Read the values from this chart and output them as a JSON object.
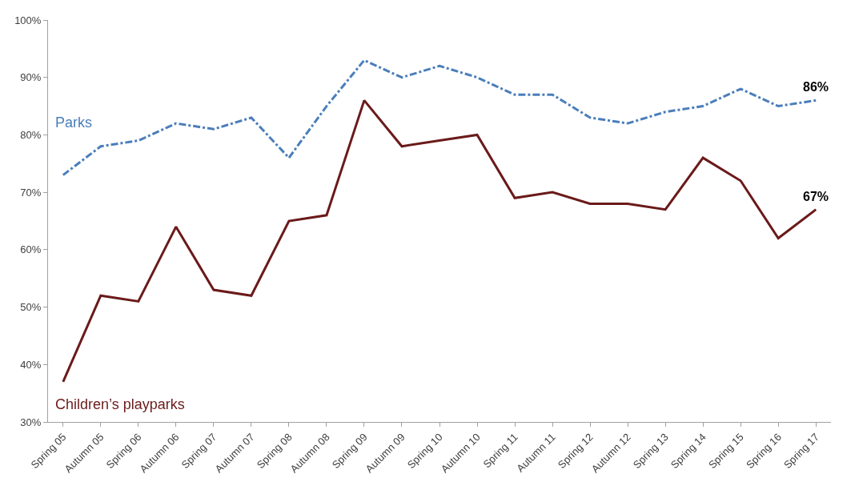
{
  "chart_data": {
    "type": "line",
    "categories": [
      "Spring 05",
      "Autumn 05",
      "Spring 06",
      "Autumn 06",
      "Spring 07",
      "Autumn 07",
      "Spring 08",
      "Autumn 08",
      "Spring 09",
      "Autumn 09",
      "Spring 10",
      "Autumn 10",
      "Spring 11",
      "Autumn 11",
      "Spring 12",
      "Autumn 12",
      "Spring 13",
      "Spring 14",
      "Spring 15",
      "Spring 16",
      "Spring 17"
    ],
    "series": [
      {
        "name": "Parks",
        "color": "#4a7ebb",
        "line_style": "dashed",
        "values": [
          73,
          78,
          79,
          82,
          81,
          83,
          76,
          85,
          93,
          90,
          92,
          90,
          87,
          87,
          83,
          82,
          84,
          85,
          88,
          85,
          86
        ],
        "value_labels": [
          null,
          null,
          null,
          null,
          null,
          null,
          null,
          null,
          null,
          null,
          null,
          null,
          null,
          null,
          null,
          null,
          null,
          null,
          null,
          null,
          "86%"
        ]
      },
      {
        "name": "Children’s playparks",
        "color": "#6b1a1a",
        "line_style": "solid",
        "values": [
          37,
          52,
          51,
          64,
          53,
          52,
          65,
          66,
          86,
          78,
          79,
          80,
          69,
          70,
          68,
          68,
          67,
          76,
          72,
          62,
          67
        ],
        "value_labels": [
          null,
          null,
          null,
          null,
          null,
          null,
          null,
          null,
          null,
          null,
          null,
          null,
          null,
          null,
          null,
          null,
          null,
          null,
          null,
          null,
          "67%"
        ]
      }
    ],
    "ylim": [
      30,
      100
    ],
    "yticks": [
      {
        "value": 30,
        "label": "30%"
      },
      {
        "value": 40,
        "label": "40%"
      },
      {
        "value": 50,
        "label": "50%"
      },
      {
        "value": 60,
        "label": "60%"
      },
      {
        "value": 70,
        "label": "70%"
      },
      {
        "value": 80,
        "label": "80%"
      },
      {
        "value": 90,
        "label": "90%"
      },
      {
        "value": 100,
        "label": "100%"
      }
    ],
    "grid": false,
    "legend": false,
    "marker": "none"
  }
}
